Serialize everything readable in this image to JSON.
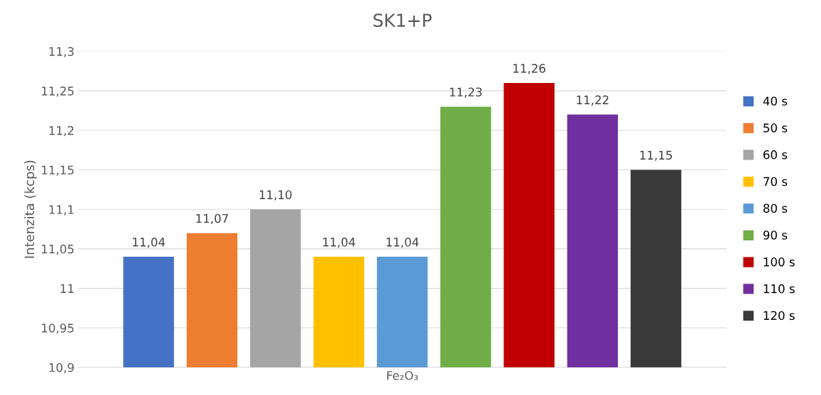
{
  "chart_data": {
    "type": "bar",
    "title": "SK1+P",
    "ylabel": "Intenzita (kcps)",
    "categories": [
      "Fe₂O₃"
    ],
    "series": [
      {
        "name": "40 s",
        "color": "#4472c4",
        "values": [
          11.04
        ],
        "value_labels": [
          "11,04"
        ]
      },
      {
        "name": "50 s",
        "color": "#ed7d31",
        "values": [
          11.07
        ],
        "value_labels": [
          "11,07"
        ]
      },
      {
        "name": "60 s",
        "color": "#a5a5a5",
        "values": [
          11.1
        ],
        "value_labels": [
          "11,10"
        ]
      },
      {
        "name": "70 s",
        "color": "#ffc000",
        "values": [
          11.04
        ],
        "value_labels": [
          "11,04"
        ]
      },
      {
        "name": "80 s",
        "color": "#5b9bd5",
        "values": [
          11.04
        ],
        "value_labels": [
          "11,04"
        ]
      },
      {
        "name": "90 s",
        "color": "#70ad47",
        "values": [
          11.23
        ],
        "value_labels": [
          "11,23"
        ]
      },
      {
        "name": "100 s",
        "color": "#c00000",
        "values": [
          11.26
        ],
        "value_labels": [
          "11,26"
        ]
      },
      {
        "name": "110 s",
        "color": "#7030a0",
        "values": [
          11.22
        ],
        "value_labels": [
          "11,22"
        ]
      },
      {
        "name": "120 s",
        "color": "#3a3a3a",
        "values": [
          11.15
        ],
        "value_labels": [
          "11,15"
        ]
      }
    ],
    "ylim": [
      10.9,
      11.3
    ],
    "yticks": [
      {
        "value": 10.9,
        "label": "10,9"
      },
      {
        "value": 10.95,
        "label": "10,95"
      },
      {
        "value": 11,
        "label": "11"
      },
      {
        "value": 11.05,
        "label": "11,05"
      },
      {
        "value": 11.1,
        "label": "11,1"
      },
      {
        "value": 11.15,
        "label": "11,15"
      },
      {
        "value": 11.2,
        "label": "11,2"
      },
      {
        "value": 11.25,
        "label": "11,25"
      },
      {
        "value": 11.3,
        "label": "11,3"
      }
    ],
    "grid": "y",
    "legend": "right"
  }
}
